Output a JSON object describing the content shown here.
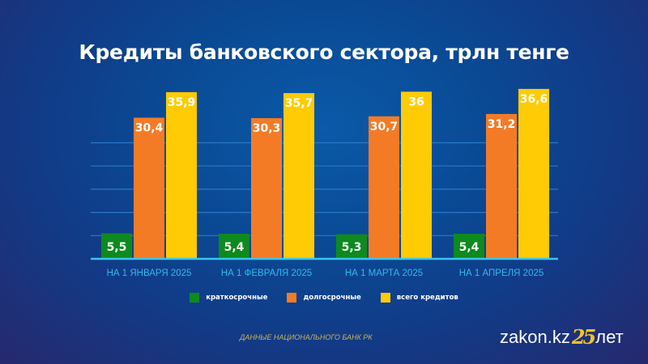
{
  "chart_data": {
    "type": "bar",
    "title": "Кредиты банковского сектора, трлн тенге",
    "categories": [
      "НА 1 ЯНВАРЯ 2025",
      "НА 1 ФЕВРАЛЯ 2025",
      "НА 1 МАРТА 2025",
      "НА 1 АПРЕЛЯ 2025"
    ],
    "series": [
      {
        "name": "краткосрочные",
        "color": "#0e8a1e",
        "values": [
          5.5,
          5.4,
          5.3,
          5.4
        ],
        "labels": [
          "5,5",
          "5,4",
          "5,3",
          "5,4"
        ]
      },
      {
        "name": "долгосрочные",
        "color": "#f47b26",
        "values": [
          30.4,
          30.3,
          30.7,
          31.2
        ],
        "labels": [
          "30,4",
          "30,3",
          "30,7",
          "31,2"
        ]
      },
      {
        "name": "всего кредитов",
        "color": "#ffcb05",
        "values": [
          35.9,
          35.7,
          36,
          36.6
        ],
        "labels": [
          "35,9",
          "35,7",
          "36",
          "36,6"
        ]
      }
    ],
    "xlabel": "",
    "ylabel": "",
    "ylim": [
      0,
      40
    ],
    "grid": true,
    "legend": "bottom"
  },
  "footer": {
    "source": "ДАННЫЕ НАЦИОНАЛЬНОГО БАНК РК",
    "logo_text": "zakon.kz",
    "logo_number": "25",
    "logo_suffix": "лет"
  }
}
